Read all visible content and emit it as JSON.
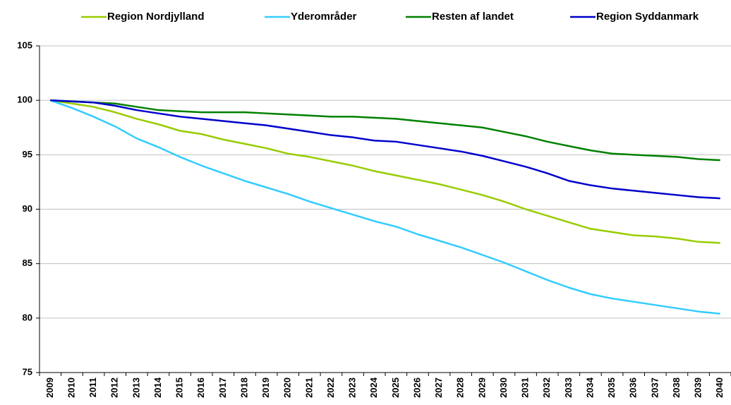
{
  "chart_data": {
    "type": "line",
    "categories": [
      "2009",
      "2010",
      "2011",
      "2012",
      "2013",
      "2014",
      "2015",
      "2016",
      "2017",
      "2018",
      "2019",
      "2020",
      "2021",
      "2022",
      "2023",
      "2024",
      "2025",
      "2026",
      "2027",
      "2028",
      "2029",
      "2030",
      "2031",
      "2032",
      "2033",
      "2034",
      "2035",
      "2036",
      "2037",
      "2038",
      "2039",
      "2040"
    ],
    "series": [
      {
        "name": "Region Nordjylland",
        "color": "#99cc00",
        "values": [
          100,
          99.7,
          99.4,
          98.9,
          98.3,
          97.8,
          97.2,
          96.9,
          96.4,
          96.0,
          95.6,
          95.1,
          94.8,
          94.4,
          94.0,
          93.5,
          93.1,
          92.7,
          92.3,
          91.8,
          91.3,
          90.7,
          90.0,
          89.4,
          88.8,
          88.2,
          87.9,
          87.6,
          87.5,
          87.3,
          87.0,
          86.9
        ]
      },
      {
        "name": "Yderområder",
        "color": "#33ccff",
        "values": [
          100,
          99.3,
          98.5,
          97.6,
          96.5,
          95.7,
          94.8,
          94.0,
          93.3,
          92.6,
          92.0,
          91.4,
          90.7,
          90.1,
          89.5,
          88.9,
          88.4,
          87.7,
          87.1,
          86.5,
          85.8,
          85.1,
          84.3,
          83.5,
          82.8,
          82.2,
          81.8,
          81.5,
          81.2,
          80.9,
          80.6,
          80.4
        ]
      },
      {
        "name": "Resten af landet",
        "color": "#008000",
        "values": [
          100,
          99.9,
          99.8,
          99.7,
          99.4,
          99.1,
          99.0,
          98.9,
          98.9,
          98.9,
          98.8,
          98.7,
          98.6,
          98.5,
          98.5,
          98.4,
          98.3,
          98.1,
          97.9,
          97.7,
          97.5,
          97.1,
          96.7,
          96.2,
          95.8,
          95.4,
          95.1,
          95.0,
          94.9,
          94.8,
          94.6,
          94.5
        ]
      },
      {
        "name": "Region Syddanmark",
        "color": "#0000cc",
        "values": [
          100,
          99.9,
          99.8,
          99.5,
          99.1,
          98.8,
          98.5,
          98.3,
          98.1,
          97.9,
          97.7,
          97.4,
          97.1,
          96.8,
          96.6,
          96.3,
          96.2,
          95.9,
          95.6,
          95.3,
          94.9,
          94.4,
          93.9,
          93.3,
          92.6,
          92.2,
          91.9,
          91.7,
          91.5,
          91.3,
          91.1,
          91.0
        ]
      }
    ],
    "ylim": [
      75,
      105
    ],
    "yticks": [
      75,
      80,
      85,
      90,
      95,
      100,
      105
    ],
    "grid": true,
    "legend": "top"
  }
}
